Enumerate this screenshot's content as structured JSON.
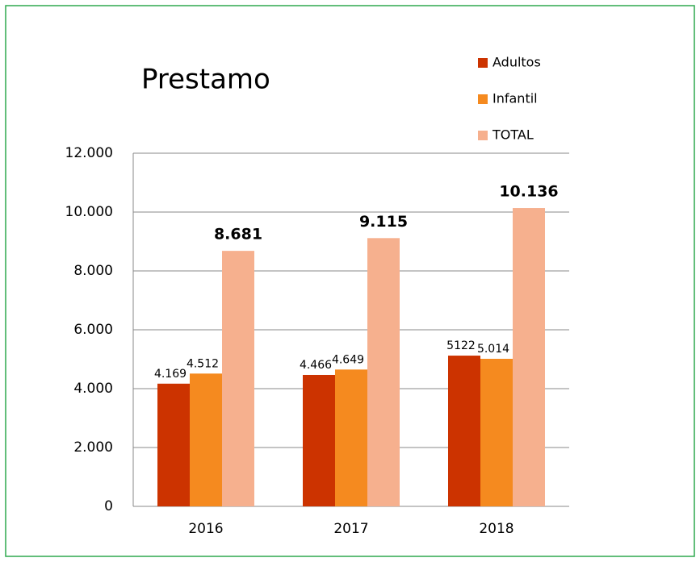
{
  "chart_data": {
    "type": "bar",
    "title": "Prestamo",
    "categories": [
      "2016",
      "2017",
      "2018"
    ],
    "series": [
      {
        "name": "Adultos",
        "color": "#cc3300",
        "values": [
          4169,
          4466,
          5122
        ],
        "value_labels": [
          "4.169",
          "4.466",
          "5122"
        ]
      },
      {
        "name": "Infantil",
        "color": "#f58a1f",
        "values": [
          4512,
          4649,
          5014
        ],
        "value_labels": [
          "4.512",
          "4.649",
          "5.014"
        ]
      },
      {
        "name": "TOTAL",
        "color": "#f6b08e",
        "values": [
          8681,
          9115,
          10136
        ],
        "value_labels": [
          "8.681",
          "9.115",
          "10.136"
        ]
      }
    ],
    "ylim": [
      0,
      12000
    ],
    "yticks": [
      0,
      {
        "value": 2000,
        "label": "2.000"
      },
      {
        "value": 4000,
        "label": "4.000"
      },
      {
        "value": 6000,
        "label": "6.000"
      },
      {
        "value": 8000,
        "label": "8.000"
      },
      {
        "value": 10000,
        "label": "10.000"
      },
      {
        "value": 12000,
        "label": "12.000"
      }
    ],
    "grid": true,
    "legend": "top-right"
  }
}
